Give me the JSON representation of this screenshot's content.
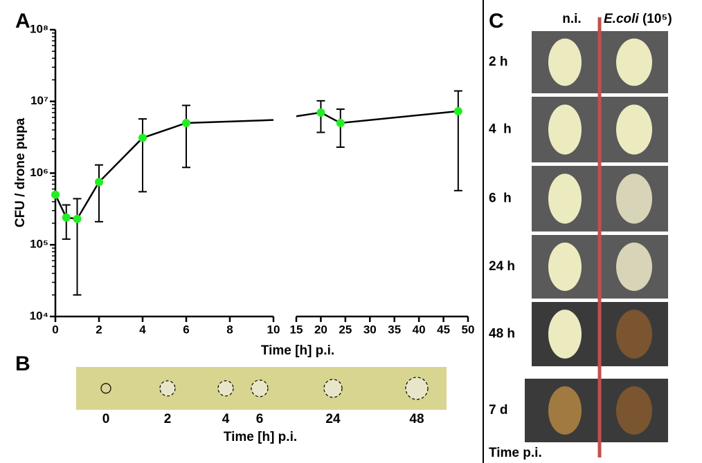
{
  "chart_data": {
    "type": "line",
    "panel_label": "A",
    "xlabel": "Time [h] p.i.",
    "ylabel": "CFU / drone pupa",
    "y_scale": "log",
    "ylim": [
      10000,
      100000000
    ],
    "yticks": [
      {
        "value": 10000,
        "label": "10⁴"
      },
      {
        "value": 100000,
        "label": "10⁵"
      },
      {
        "value": 1000000,
        "label": "10⁶"
      },
      {
        "value": 10000000,
        "label": "10⁷"
      },
      {
        "value": 100000000,
        "label": "10⁸"
      }
    ],
    "x_segments": [
      {
        "xlim": [
          0,
          10
        ],
        "xticks": [
          0,
          2,
          4,
          6,
          8,
          10
        ]
      },
      {
        "xlim": [
          15,
          50
        ],
        "xticks": [
          15,
          20,
          25,
          30,
          35,
          40,
          45,
          50
        ]
      }
    ],
    "series": [
      {
        "color": "#000000",
        "marker_color": "#22ee22",
        "x": [
          0,
          0.5,
          1,
          2,
          4,
          6,
          20,
          24,
          48
        ],
        "values": [
          500000,
          240000,
          230000,
          750000,
          3100000,
          5000000,
          7000000,
          5000000,
          7300000
        ],
        "error_lower": [
          null,
          120000,
          20000,
          210000,
          550000,
          1200000,
          3700000,
          2300000,
          570000
        ],
        "error_upper": [
          null,
          360000,
          440000,
          1300000,
          5700000,
          8800000,
          10200000,
          7800000,
          14000000
        ]
      }
    ]
  },
  "panel_b": {
    "panel_label": "B",
    "labels": [
      "0",
      "2",
      "4",
      "6",
      "24",
      "48"
    ],
    "xlabel": "Time [h] p.i."
  },
  "panel_c": {
    "panel_label": "C",
    "column_header": "n.i.",
    "ecoli_header": {
      "organism": "E.coli",
      "dose": "(10⁵)"
    },
    "rows": [
      "2 h",
      "4  h",
      "6  h",
      "24 h",
      "48 h",
      "7 d"
    ],
    "footer": "Time p.i."
  }
}
